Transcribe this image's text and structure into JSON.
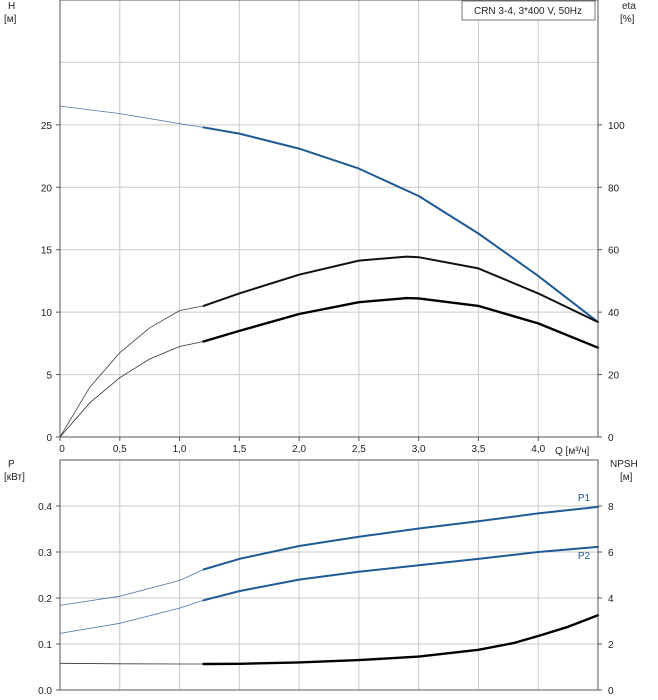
{
  "chart_data": [
    {
      "type": "line",
      "title": "CRN 3-4, 3*400 V, 50Hz",
      "xlabel": "Q [м³/ч]",
      "ylabel_left": [
        "H",
        "[м]"
      ],
      "ylabel_right": [
        "eta",
        "[%]"
      ],
      "xlim": [
        0,
        4.5
      ],
      "ylim_left": [
        0,
        35
      ],
      "ylim_right": [
        0,
        140
      ],
      "x_ticks": [
        {
          "v": 0,
          "label": "0"
        },
        {
          "v": 0.5,
          "label": "0,5"
        },
        {
          "v": 1.0,
          "label": "1,0"
        },
        {
          "v": 1.5,
          "label": "1,5"
        },
        {
          "v": 2.0,
          "label": "2,0"
        },
        {
          "v": 2.5,
          "label": "2,5"
        },
        {
          "v": 3.0,
          "label": "3,0"
        },
        {
          "v": 3.5,
          "label": "3,5"
        },
        {
          "v": 4.0,
          "label": "4,0"
        }
      ],
      "y_ticks_left": [
        {
          "v": 0,
          "label": "0"
        },
        {
          "v": 5,
          "label": "5"
        },
        {
          "v": 10,
          "label": "10"
        },
        {
          "v": 15,
          "label": "15"
        },
        {
          "v": 20,
          "label": "20"
        },
        {
          "v": 25,
          "label": "25"
        }
      ],
      "y_ticks_right": [
        {
          "v": 0,
          "label": "0"
        },
        {
          "v": 20,
          "label": "20"
        },
        {
          "v": 40,
          "label": "40"
        },
        {
          "v": 60,
          "label": "60"
        },
        {
          "v": 80,
          "label": "80"
        },
        {
          "v": 100,
          "label": "100"
        }
      ],
      "grid": true,
      "series": [
        {
          "axis": "left",
          "color": "#1f5a96",
          "bold_from": 1.2,
          "x": [
            0,
            0.5,
            1.0,
            1.2,
            1.5,
            2.0,
            2.5,
            3.0,
            3.5,
            4.0,
            4.5
          ],
          "y": [
            26.5,
            25.9,
            25.1,
            24.8,
            24.3,
            23.1,
            21.5,
            19.3,
            16.3,
            12.9,
            9.2
          ]
        },
        {
          "axis": "right",
          "color": "#111111",
          "bold_from": 1.2,
          "x": [
            0,
            0.25,
            0.5,
            0.75,
            1.0,
            1.2,
            1.5,
            2.0,
            2.5,
            2.9,
            3.0,
            3.5,
            4.0,
            4.5
          ],
          "y": [
            0,
            16,
            27,
            35,
            40.5,
            42,
            46,
            52,
            56.5,
            57.8,
            57.6,
            54,
            46,
            36.8
          ]
        },
        {
          "axis": "right",
          "color": "#000000",
          "bold_from": 1.2,
          "bold_width": 2.4,
          "x": [
            0,
            0.25,
            0.5,
            0.75,
            1.0,
            1.2,
            1.5,
            2.0,
            2.5,
            2.9,
            3.0,
            3.5,
            4.0,
            4.5
          ],
          "y": [
            0,
            11,
            19,
            25,
            29,
            30.6,
            34,
            39.4,
            43.2,
            44.5,
            44.4,
            42,
            36.4,
            28.6
          ]
        }
      ]
    },
    {
      "type": "line",
      "xlabel": "",
      "ylabel_left": [
        "P",
        "[кВт]"
      ],
      "ylabel_right": [
        "NPSH",
        "[м]"
      ],
      "xlim": [
        0,
        4.5
      ],
      "ylim_left": [
        0,
        0.5
      ],
      "ylim_right": [
        0,
        10
      ],
      "y_ticks_left": [
        {
          "v": 0,
          "label": "0.0"
        },
        {
          "v": 0.1,
          "label": "0.1"
        },
        {
          "v": 0.2,
          "label": "0.2"
        },
        {
          "v": 0.3,
          "label": "0.3"
        },
        {
          "v": 0.4,
          "label": "0.4"
        }
      ],
      "y_ticks_right": [
        {
          "v": 0,
          "label": "0"
        },
        {
          "v": 2,
          "label": "2"
        },
        {
          "v": 4,
          "label": "4"
        },
        {
          "v": 6,
          "label": "6"
        },
        {
          "v": 8,
          "label": "8"
        }
      ],
      "grid": true,
      "series": [
        {
          "name": "P1",
          "axis": "left",
          "color": "#1f5a96",
          "bold_from": 1.2,
          "x": [
            0,
            0.5,
            1.0,
            1.2,
            1.5,
            2.0,
            2.5,
            3.0,
            3.5,
            4.0,
            4.5
          ],
          "y": [
            0.184,
            0.204,
            0.238,
            0.262,
            0.285,
            0.313,
            0.333,
            0.351,
            0.367,
            0.384,
            0.398
          ]
        },
        {
          "name": "P2",
          "axis": "left",
          "color": "#1f5a96",
          "bold_from": 1.2,
          "x": [
            0,
            0.5,
            1.0,
            1.2,
            1.5,
            2.0,
            2.5,
            3.0,
            3.5,
            4.0,
            4.5
          ],
          "y": [
            0.123,
            0.145,
            0.178,
            0.195,
            0.215,
            0.24,
            0.257,
            0.271,
            0.285,
            0.3,
            0.311
          ]
        },
        {
          "axis": "right",
          "color": "#000000",
          "bold_from": 1.2,
          "bold_width": 2.4,
          "x": [
            0,
            0.5,
            1.0,
            1.2,
            1.5,
            2.0,
            2.5,
            3.0,
            3.5,
            3.8,
            4.0,
            4.25,
            4.5
          ],
          "y": [
            1.16,
            1.14,
            1.13,
            1.13,
            1.14,
            1.2,
            1.3,
            1.45,
            1.75,
            2.05,
            2.35,
            2.75,
            3.25
          ]
        }
      ]
    }
  ]
}
